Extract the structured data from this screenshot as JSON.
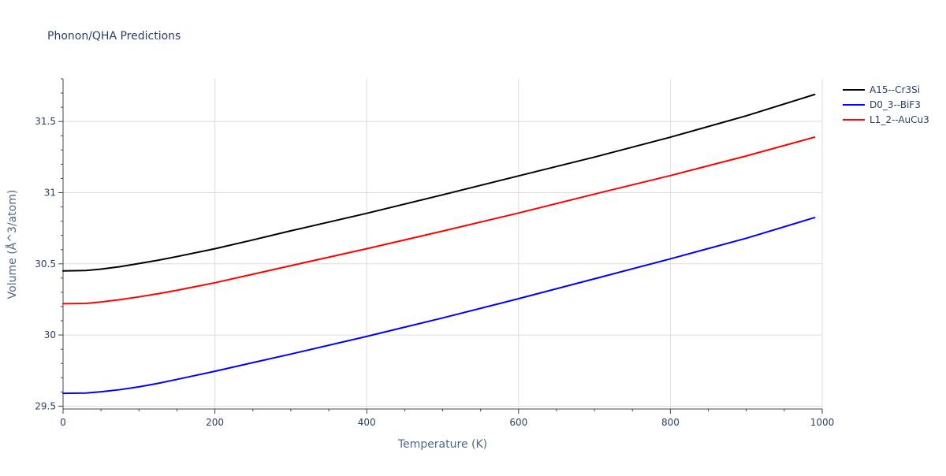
{
  "chart_data": {
    "type": "line",
    "title": "Phonon/QHA Predictions",
    "xlabel": "Temperature (K)",
    "ylabel": "Volume (Å^3/atom)",
    "xlim": [
      0,
      1000
    ],
    "ylim": [
      29.48,
      31.8
    ],
    "x_ticks": [
      0,
      200,
      400,
      600,
      800,
      1000
    ],
    "x_tick_labels": [
      "0",
      "200",
      "400",
      "600",
      "800",
      "1000"
    ],
    "y_ticks": [
      29.5,
      30,
      30.5,
      31,
      31.5
    ],
    "y_tick_labels": [
      "29.5",
      "30",
      "30.5",
      "31",
      "31.5"
    ],
    "grid": true,
    "legend_position": "top-right",
    "series": [
      {
        "name": "A15--Cr3Si",
        "color": "#000000",
        "x": [
          0,
          30,
          50,
          75,
          100,
          125,
          150,
          200,
          250,
          300,
          400,
          500,
          600,
          700,
          800,
          900,
          990
        ],
        "y": [
          30.45,
          30.453,
          30.463,
          30.48,
          30.502,
          30.525,
          30.551,
          30.606,
          30.668,
          30.732,
          30.855,
          30.985,
          31.118,
          31.25,
          31.39,
          31.54,
          31.69
        ]
      },
      {
        "name": "D0_3--BiF3",
        "color": "#0000ff",
        "x": [
          0,
          30,
          50,
          75,
          100,
          125,
          150,
          200,
          250,
          300,
          400,
          500,
          600,
          700,
          800,
          900,
          990
        ],
        "y": [
          29.59,
          29.592,
          29.601,
          29.616,
          29.636,
          29.66,
          29.688,
          29.745,
          29.806,
          29.866,
          29.99,
          30.12,
          30.255,
          30.395,
          30.535,
          30.68,
          30.825
        ]
      },
      {
        "name": "L1_2--AuCu3",
        "color": "#ff0000",
        "x": [
          0,
          30,
          50,
          75,
          100,
          125,
          150,
          200,
          250,
          300,
          400,
          500,
          600,
          700,
          800,
          900,
          990
        ],
        "y": [
          30.22,
          30.222,
          30.232,
          30.248,
          30.268,
          30.29,
          30.314,
          30.367,
          30.427,
          30.487,
          30.606,
          30.73,
          30.857,
          30.99,
          31.12,
          31.258,
          31.39
        ]
      }
    ]
  }
}
